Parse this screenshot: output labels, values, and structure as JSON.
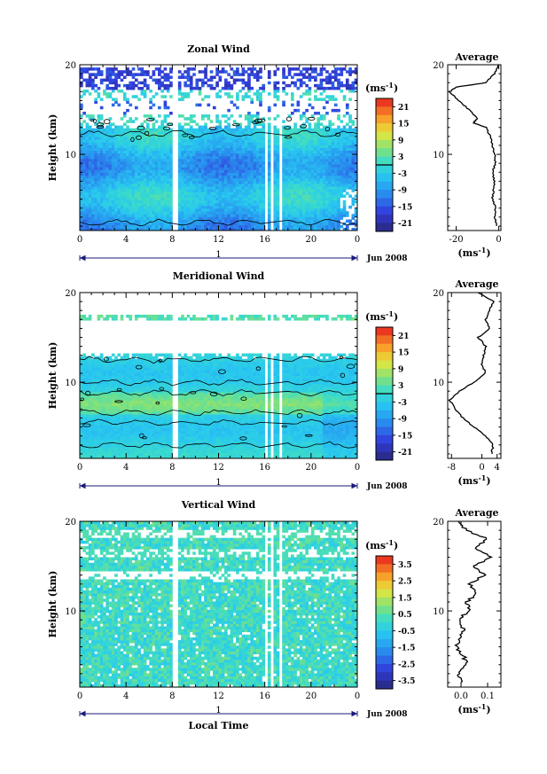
{
  "chart_data": [
    {
      "type": "heatmap",
      "title": "Zonal Wind",
      "ylabel": "Height (km)",
      "xlabel": "",
      "x_ticks": [
        "0",
        "4",
        "8",
        "12",
        "16",
        "20",
        "0"
      ],
      "xlim": [
        0,
        24
      ],
      "y_ticks": [
        "10",
        "20"
      ],
      "ylim": [
        1.5,
        20
      ],
      "date_label": "Jun 2008",
      "day_label": "1",
      "colorbar": {
        "unit": "(ms",
        "unit_exp": "-1",
        "unit_close": ")",
        "ticks": [
          "21",
          "15",
          "9",
          "3",
          "-3",
          "-9",
          "-15",
          "-21"
        ],
        "range": [
          -24,
          24
        ]
      },
      "profile": {
        "title": "Average",
        "x_ticks": [
          "-20",
          "0"
        ],
        "xlim": [
          -24,
          1
        ],
        "unit": "(ms",
        "unit_exp": "-1",
        "unit_close": ")",
        "heights": [
          2,
          3,
          4,
          5,
          6,
          7,
          8,
          9,
          10,
          11,
          12,
          13,
          13.5,
          14,
          15,
          16,
          17,
          17.5,
          18,
          19,
          20
        ],
        "values": [
          -1,
          -2,
          -1.5,
          -3,
          -2.5,
          -2,
          -3,
          -1.5,
          -2,
          -3,
          -4,
          -6,
          -12,
          -10,
          -14,
          -19,
          -23,
          -20,
          -6,
          -2,
          0
        ]
      }
    },
    {
      "type": "heatmap",
      "title": "Meridional Wind",
      "ylabel": "Height (km)",
      "xlabel": "",
      "x_ticks": [
        "0",
        "4",
        "8",
        "12",
        "16",
        "20",
        "0"
      ],
      "xlim": [
        0,
        24
      ],
      "y_ticks": [
        "10",
        "20"
      ],
      "ylim": [
        1.5,
        20
      ],
      "date_label": "Jun 2008",
      "day_label": "1",
      "colorbar": {
        "unit": "(ms",
        "unit_exp": "-1",
        "unit_close": ")",
        "ticks": [
          "21",
          "15",
          "9",
          "3",
          "-3",
          "-9",
          "-15",
          "-21"
        ],
        "range": [
          -24,
          24
        ]
      },
      "profile": {
        "title": "Average",
        "x_ticks": [
          "-8",
          "0",
          "4"
        ],
        "xlim": [
          -9,
          5
        ],
        "unit": "(ms",
        "unit_exp": "-1",
        "unit_close": ")",
        "heights": [
          2,
          3,
          4,
          5,
          6,
          7,
          8,
          9,
          10,
          11,
          12,
          13,
          14,
          15,
          16,
          17,
          18,
          19,
          20
        ],
        "values": [
          2.5,
          3,
          1,
          -2,
          -5,
          -7,
          -8.5,
          -6,
          -2,
          1,
          0,
          0.5,
          1,
          -1,
          2,
          1,
          2,
          3,
          -1
        ]
      }
    },
    {
      "type": "heatmap",
      "title": "Vertical Wind",
      "ylabel": "Height (km)",
      "xlabel": "Local Time",
      "x_ticks": [
        "0",
        "4",
        "8",
        "12",
        "16",
        "20",
        "0"
      ],
      "xlim": [
        0,
        24
      ],
      "y_ticks": [
        "10",
        "20"
      ],
      "ylim": [
        1.5,
        20
      ],
      "date_label": "Jun 2008",
      "day_label": "1",
      "colorbar": {
        "unit": "(ms",
        "unit_exp": "-1",
        "unit_close": ")",
        "ticks": [
          "3.5",
          "2.5",
          "1.5",
          "0.5",
          "-0.5",
          "-1.5",
          "-2.5",
          "-3.5"
        ],
        "range": [
          -4,
          4
        ]
      },
      "profile": {
        "title": "Average",
        "x_ticks": [
          "0.0",
          "0.1"
        ],
        "xlim": [
          -0.05,
          0.15
        ],
        "unit": "(ms",
        "unit_exp": "-1",
        "unit_close": ")",
        "heights": [
          2,
          3,
          4,
          5,
          6,
          7,
          8,
          9,
          10,
          11,
          12,
          13,
          14,
          15,
          16,
          17,
          18,
          19,
          20
        ],
        "values": [
          0.0,
          -0.01,
          0.02,
          0.01,
          -0.02,
          0.0,
          0.01,
          -0.01,
          0.03,
          0.02,
          0.06,
          0.03,
          0.09,
          0.04,
          0.12,
          0.05,
          0.1,
          0.02,
          -0.01
        ]
      }
    }
  ]
}
